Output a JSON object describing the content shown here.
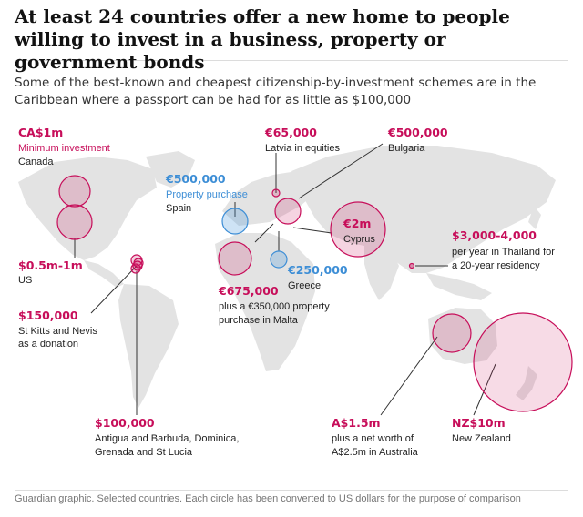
{
  "headline": "At least 24 countries offer a new home to people willing to invest in a business, property or government bonds",
  "standfirst": "Some of the best-known and cheapest citizenship-by-investment schemes are in the Caribbean where a passport can be had for as little as $100,000",
  "colors": {
    "investment": "#c70e5a",
    "property": "#3d8ed6",
    "map": "#e3e3e3"
  },
  "annotations": {
    "canada": {
      "amount": "CA$1m",
      "note": "Minimum investment",
      "country": "Canada"
    },
    "us": {
      "amount": "$0.5m-1m",
      "country": "US"
    },
    "stkitts": {
      "amount": "$150,000",
      "line1": "St Kitts and Nevis",
      "line2": "as a donation"
    },
    "antigua": {
      "amount": "$100,000",
      "line1": "Antigua and Barbuda, Dominica,",
      "line2": "Grenada and St Lucia"
    },
    "spain": {
      "amount": "€500,000",
      "note": "Property purchase",
      "country": "Spain"
    },
    "latvia": {
      "amount": "€65,000",
      "country": "Latvia in equities"
    },
    "bulgaria": {
      "amount": "€500,000",
      "country": "Bulgaria"
    },
    "cyprus": {
      "amount": "€2m",
      "country": "Cyprus"
    },
    "greece": {
      "amount": "€250,000",
      "country": "Greece"
    },
    "malta": {
      "amount": "€675,000",
      "line1": "plus a €350,000 property",
      "line2": "purchase in Malta"
    },
    "thailand": {
      "amount": "$3,000-4,000",
      "line1": "per year in Thailand for",
      "line2": "a 20-year residency"
    },
    "australia": {
      "amount": "A$1.5m",
      "line1": "plus a net worth of",
      "line2": "A$2.5m in Australia"
    },
    "newzealand": {
      "amount": "NZ$10m",
      "country": "New Zealand"
    }
  },
  "source": "Guardian graphic. Selected countries. Each circle has been converted to US dollars for the purpose of comparison"
}
